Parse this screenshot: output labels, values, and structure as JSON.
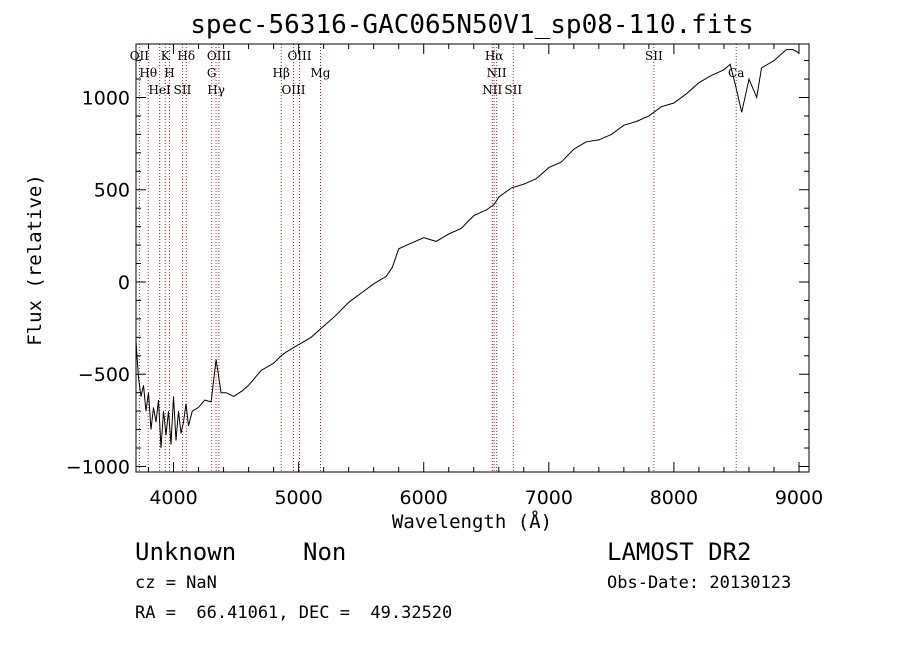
{
  "chart_data": {
    "type": "line",
    "title": "spec-56316-GAC065N50V1_sp08-110.fits",
    "xlabel": "Wavelength (Å)",
    "ylabel": "Flux (relative)",
    "xlim": [
      3700,
      9080
    ],
    "ylim": [
      -1030,
      1290
    ],
    "xticks": [
      4000,
      5000,
      6000,
      7000,
      8000,
      9000
    ],
    "yticks": [
      -1000,
      -500,
      0,
      500,
      1000
    ],
    "series": [
      {
        "x": [
          3700,
          3720,
          3740,
          3760,
          3780,
          3800,
          3820,
          3840,
          3860,
          3880,
          3900,
          3920,
          3940,
          3960,
          3980,
          4000,
          4020,
          4040,
          4060,
          4080,
          4100,
          4120,
          4150,
          4200,
          4250,
          4300,
          4340,
          4380,
          4420,
          4480,
          4550,
          4600,
          4700,
          4800,
          4861,
          4900,
          5000,
          5100,
          5200,
          5300,
          5400,
          5500,
          5600,
          5700,
          5750,
          5800,
          5900,
          6000,
          6100,
          6200,
          6300,
          6400,
          6500,
          6563,
          6600,
          6700,
          6800,
          6900,
          7000,
          7100,
          7200,
          7300,
          7400,
          7500,
          7600,
          7700,
          7800,
          7900,
          8000,
          8100,
          8200,
          8300,
          8400,
          8450,
          8498,
          8542,
          8600,
          8662,
          8700,
          8800,
          8900,
          8950,
          8980,
          9000
        ],
        "y": [
          -320,
          -520,
          -620,
          -560,
          -700,
          -600,
          -800,
          -680,
          -760,
          -640,
          -900,
          -700,
          -830,
          -700,
          -880,
          -620,
          -860,
          -700,
          -820,
          -760,
          -660,
          -780,
          -700,
          -680,
          -640,
          -650,
          -420,
          -600,
          -600,
          -620,
          -590,
          -560,
          -480,
          -440,
          -400,
          -380,
          -340,
          -300,
          -240,
          -180,
          -110,
          -60,
          -10,
          30,
          80,
          180,
          210,
          240,
          220,
          260,
          290,
          360,
          390,
          420,
          460,
          510,
          530,
          560,
          620,
          650,
          720,
          760,
          770,
          800,
          850,
          870,
          900,
          950,
          970,
          1020,
          1080,
          1120,
          1150,
          1180,
          1050,
          920,
          1100,
          1000,
          1160,
          1200,
          1260,
          1260,
          1250,
          1240
        ]
      }
    ],
    "lines": [
      {
        "w": 3727,
        "l1": "OII"
      },
      {
        "w": 3798,
        "l1": "Hθ"
      },
      {
        "w": 3889,
        "l1": "HeI"
      },
      {
        "w": 3934,
        "l1": "K"
      },
      {
        "w": 3968,
        "l1": "H"
      },
      {
        "w": 4072,
        "l1": "SII"
      },
      {
        "w": 4102,
        "l1": "Hδ"
      },
      {
        "w": 4305,
        "l1": "G"
      },
      {
        "w": 4340,
        "l1": "Hγ"
      },
      {
        "w": 4363,
        "l1": "OIII"
      },
      {
        "w": 4861,
        "l1": "Hβ"
      },
      {
        "w": 4959,
        "l1": "OIII"
      },
      {
        "w": 5007,
        "l1": "OIII"
      },
      {
        "w": 5175,
        "l1": "Mg"
      },
      {
        "w": 6548,
        "l1": "NII"
      },
      {
        "w": 6563,
        "l1": "Hα"
      },
      {
        "w": 6583,
        "l1": "NII"
      },
      {
        "w": 6716,
        "l1": "SII"
      },
      {
        "w": 7840,
        "l1": "SII"
      },
      {
        "w": 8498,
        "l1": "Ca"
      }
    ]
  },
  "info": {
    "class": "Unknown",
    "subclass": "Non",
    "cz": "cz = NaN",
    "radec": "RA =  66.41061, DEC =  49.32520",
    "survey": "LAMOST DR2",
    "obsdate": "Obs-Date: 20130123"
  }
}
